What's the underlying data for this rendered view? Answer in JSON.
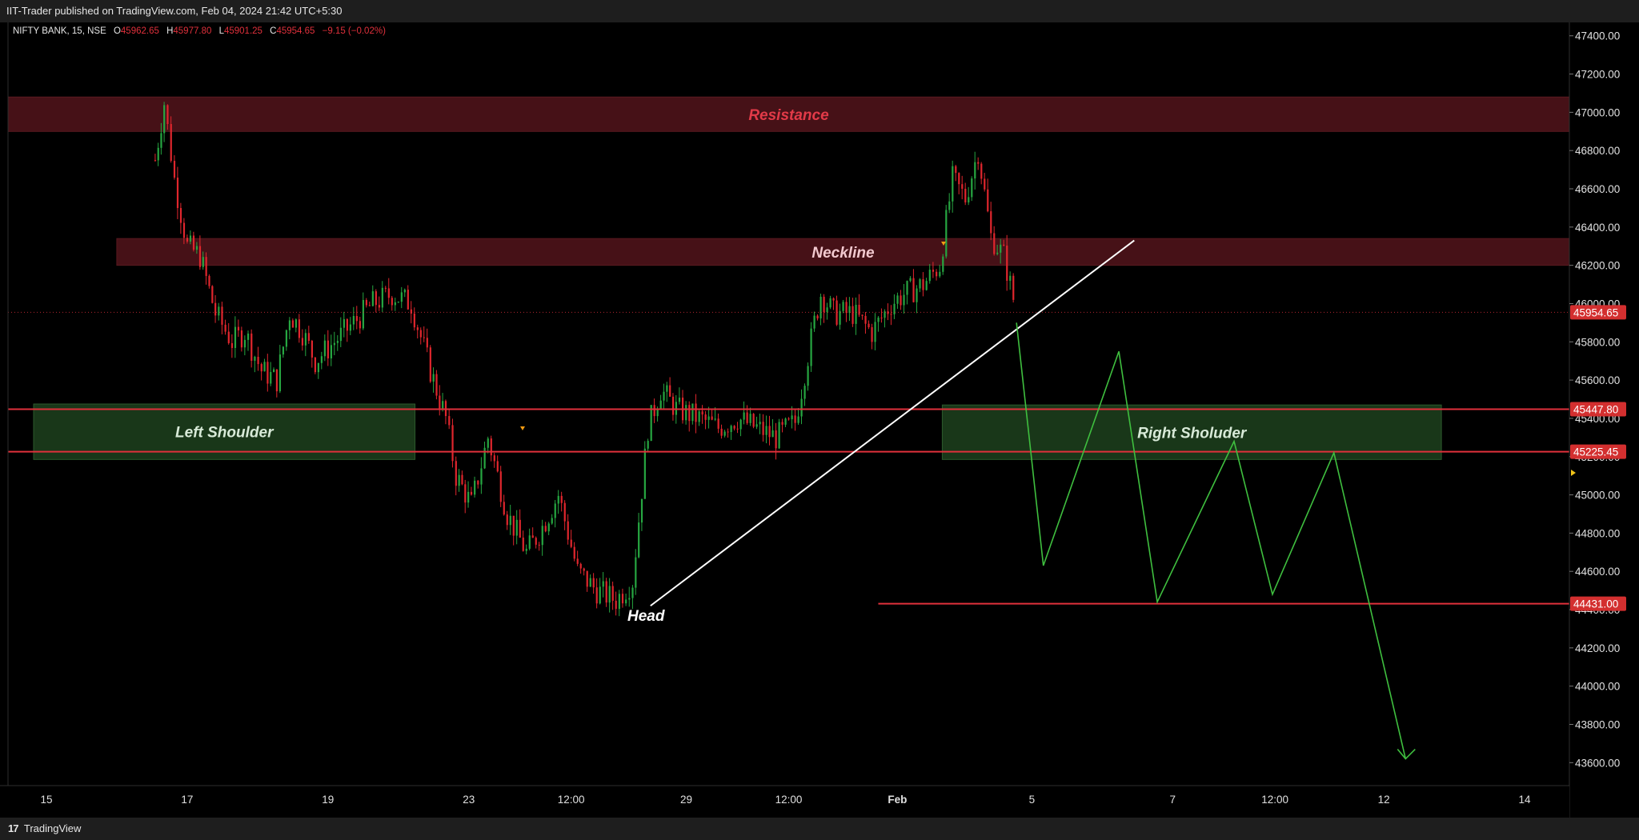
{
  "header": {
    "publish_text": "IIT-Trader published on TradingView.com, Feb 04, 2024 21:42 UTC+5:30"
  },
  "footer": {
    "brand": "TradingView",
    "logo_glyph": "17"
  },
  "colors": {
    "background": "#000000",
    "up": "#26a641",
    "down": "#e0262d",
    "zone_red": "#4a1218",
    "zone_green": "#1a3a1a",
    "level_line": "#e0303b",
    "path_line": "#3fbf3f",
    "trend_line": "#ffffff",
    "axis_text": "#e0e0e0",
    "price_tag": "#d32f2f"
  },
  "chart_data": {
    "type": "candlestick",
    "symbol_info": {
      "name": "NIFTY BANK, 15, NSE",
      "open_label": "O",
      "open": "45962.65",
      "high_label": "H",
      "high": "45977.80",
      "low_label": "L",
      "low": "45901.25",
      "close_label": "C",
      "close": "45954.65",
      "change": "−9.15 (−0.02%)"
    },
    "y_axis": {
      "ticks": [
        "47400.00",
        "47200.00",
        "47000.00",
        "46800.00",
        "46600.00",
        "46400.00",
        "46200.00",
        "46000.00",
        "45800.00",
        "45600.00",
        "45400.00",
        "45200.00",
        "45000.00",
        "44800.00",
        "44600.00",
        "44400.00",
        "44200.00",
        "44000.00",
        "43800.00",
        "43600.00"
      ],
      "range": [
        43480,
        47470
      ]
    },
    "x_axis": {
      "labels": [
        "15",
        "17",
        "19",
        "23",
        "12:00",
        "29",
        "12:00",
        "Feb",
        "5",
        "7",
        "12:00",
        "12",
        "14"
      ],
      "label_positions": [
        0.3,
        1.4,
        2.5,
        3.6,
        4.4,
        5.3,
        6.1,
        6.95,
        8.0,
        9.1,
        9.9,
        10.75,
        11.85
      ],
      "range": [
        0,
        12.2
      ]
    },
    "price_tags": [
      {
        "label": "45954.65",
        "value": 45954.65
      },
      {
        "label": "45447.80",
        "value": 45447.8
      },
      {
        "label": "45225.45",
        "value": 45225.45
      },
      {
        "label": "44431.00",
        "value": 44431.0
      }
    ],
    "zones": [
      {
        "label": "Resistance",
        "x_start": 0.0,
        "x_end": 12.2,
        "y_low": 46900,
        "y_high": 47080,
        "color": "red"
      },
      {
        "label": "Neckline",
        "x_start": 0.85,
        "x_end": 12.2,
        "y_low": 46200,
        "y_high": 46340,
        "color": "red"
      },
      {
        "label": "Left Shoulder",
        "x_start": 0.2,
        "x_end": 3.18,
        "y_low": 45185,
        "y_high": 45475,
        "color": "green"
      },
      {
        "label": "Right Sholuder",
        "x_start": 7.3,
        "x_end": 11.2,
        "y_low": 45185,
        "y_high": 45470,
        "color": "green"
      }
    ],
    "labels": [
      {
        "text": "Head",
        "x": 4.84,
        "y": 44400
      }
    ],
    "horizontal_lines": [
      {
        "value": 45447.8,
        "x_start": 0.0,
        "x_end": 12.2
      },
      {
        "value": 45225.45,
        "x_start": 0.0,
        "x_end": 12.2
      },
      {
        "value": 44431.0,
        "x_start": 6.8,
        "x_end": 12.2
      }
    ],
    "current_price_line": 45954.65,
    "trend_line": {
      "from": [
        5.02,
        44420
      ],
      "to": [
        8.8,
        46330
      ]
    },
    "projection_path": {
      "x": [
        7.88,
        8.09,
        8.68,
        8.98,
        9.58,
        9.88,
        10.36,
        10.92
      ],
      "y": [
        45900,
        44630,
        45750,
        44440,
        45280,
        44480,
        45220,
        43620
      ]
    },
    "price_path": {
      "x": [
        1.15,
        1.22,
        1.3,
        1.4,
        1.5,
        1.62,
        1.75,
        1.85,
        1.98,
        2.1,
        2.2,
        2.3,
        2.4,
        2.55,
        2.7,
        2.85,
        3.0,
        3.15,
        3.3,
        3.42,
        3.5,
        3.62,
        3.75,
        3.9,
        4.05,
        4.15,
        4.3,
        4.45,
        4.6,
        4.75,
        4.88,
        5.0,
        5.1,
        5.22,
        5.4,
        5.55,
        5.7,
        5.85,
        6.0,
        6.15,
        6.3,
        6.35,
        6.45,
        6.6,
        6.75,
        6.9,
        7.0,
        7.15,
        7.28,
        7.38,
        7.48,
        7.58,
        7.68,
        7.78,
        7.88
      ],
      "y": [
        46750,
        47050,
        46650,
        46300,
        46250,
        45950,
        45800,
        45850,
        45650,
        45600,
        45950,
        45850,
        45700,
        45800,
        45900,
        46000,
        46050,
        46000,
        45650,
        45400,
        45100,
        44950,
        45300,
        44900,
        44700,
        44800,
        45000,
        44600,
        44500,
        44450,
        44550,
        45350,
        45550,
        45450,
        45400,
        45350,
        45400,
        45350,
        45300,
        45380,
        45900,
        46050,
        45950,
        45950,
        45850,
        46000,
        46050,
        46100,
        46200,
        46650,
        46550,
        46800,
        46350,
        46250,
        45950
      ]
    }
  }
}
